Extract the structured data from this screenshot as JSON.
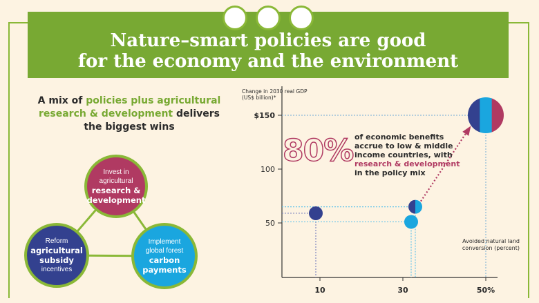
{
  "title": {
    "line1": "Nature–smart policies are good",
    "line2": "for the economy and the environment"
  },
  "subheading": {
    "part1": "A mix of ",
    "highlight1": "policies plus agricultural research & development",
    "part2": " delivers the biggest wins"
  },
  "policies": [
    {
      "line1": "Invest in",
      "line2": "agricultural",
      "bold": "research & development",
      "color": "#b03a62"
    },
    {
      "line1": "Reform",
      "bold": "agricultural subsidy",
      "line3": "incentives",
      "color": "#33418f"
    },
    {
      "line1": "Implement",
      "line2": "global forest",
      "bold": "carbon payments",
      "color": "#1aa6df"
    }
  ],
  "annotation": {
    "big": "80%",
    "text1": "of economic benefits accrue to low & middle income countries, with ",
    "highlight": "research & development",
    "text2": " in the policy mix"
  },
  "chart_data": {
    "type": "scatter",
    "ylabel_line1": "Change in 2030 real GDP",
    "ylabel_line2": "(US$ billion)*",
    "xlabel": "Avoided natural land conversion (percent)",
    "yticks": [
      "$150",
      "100",
      "50"
    ],
    "xticks": [
      "10",
      "30",
      "50%"
    ],
    "ytick_values": [
      150,
      100,
      50
    ],
    "xtick_values": [
      10,
      30,
      50
    ],
    "series": [
      {
        "x": 9,
        "y": 59,
        "colors": [
          "#33418f"
        ]
      },
      {
        "x": 32,
        "y": 51,
        "colors": [
          "#1aa6df"
        ]
      },
      {
        "x": 33,
        "y": 65,
        "colors": [
          "#33418f",
          "#1aa6df"
        ]
      },
      {
        "x": 50,
        "y": 150,
        "colors": [
          "#33418f",
          "#1aa6df",
          "#b03a62"
        ]
      }
    ],
    "colors": {
      "green": "#78a933",
      "navy": "#33418f",
      "cyan": "#1aa6df",
      "pink": "#b03a62"
    }
  }
}
